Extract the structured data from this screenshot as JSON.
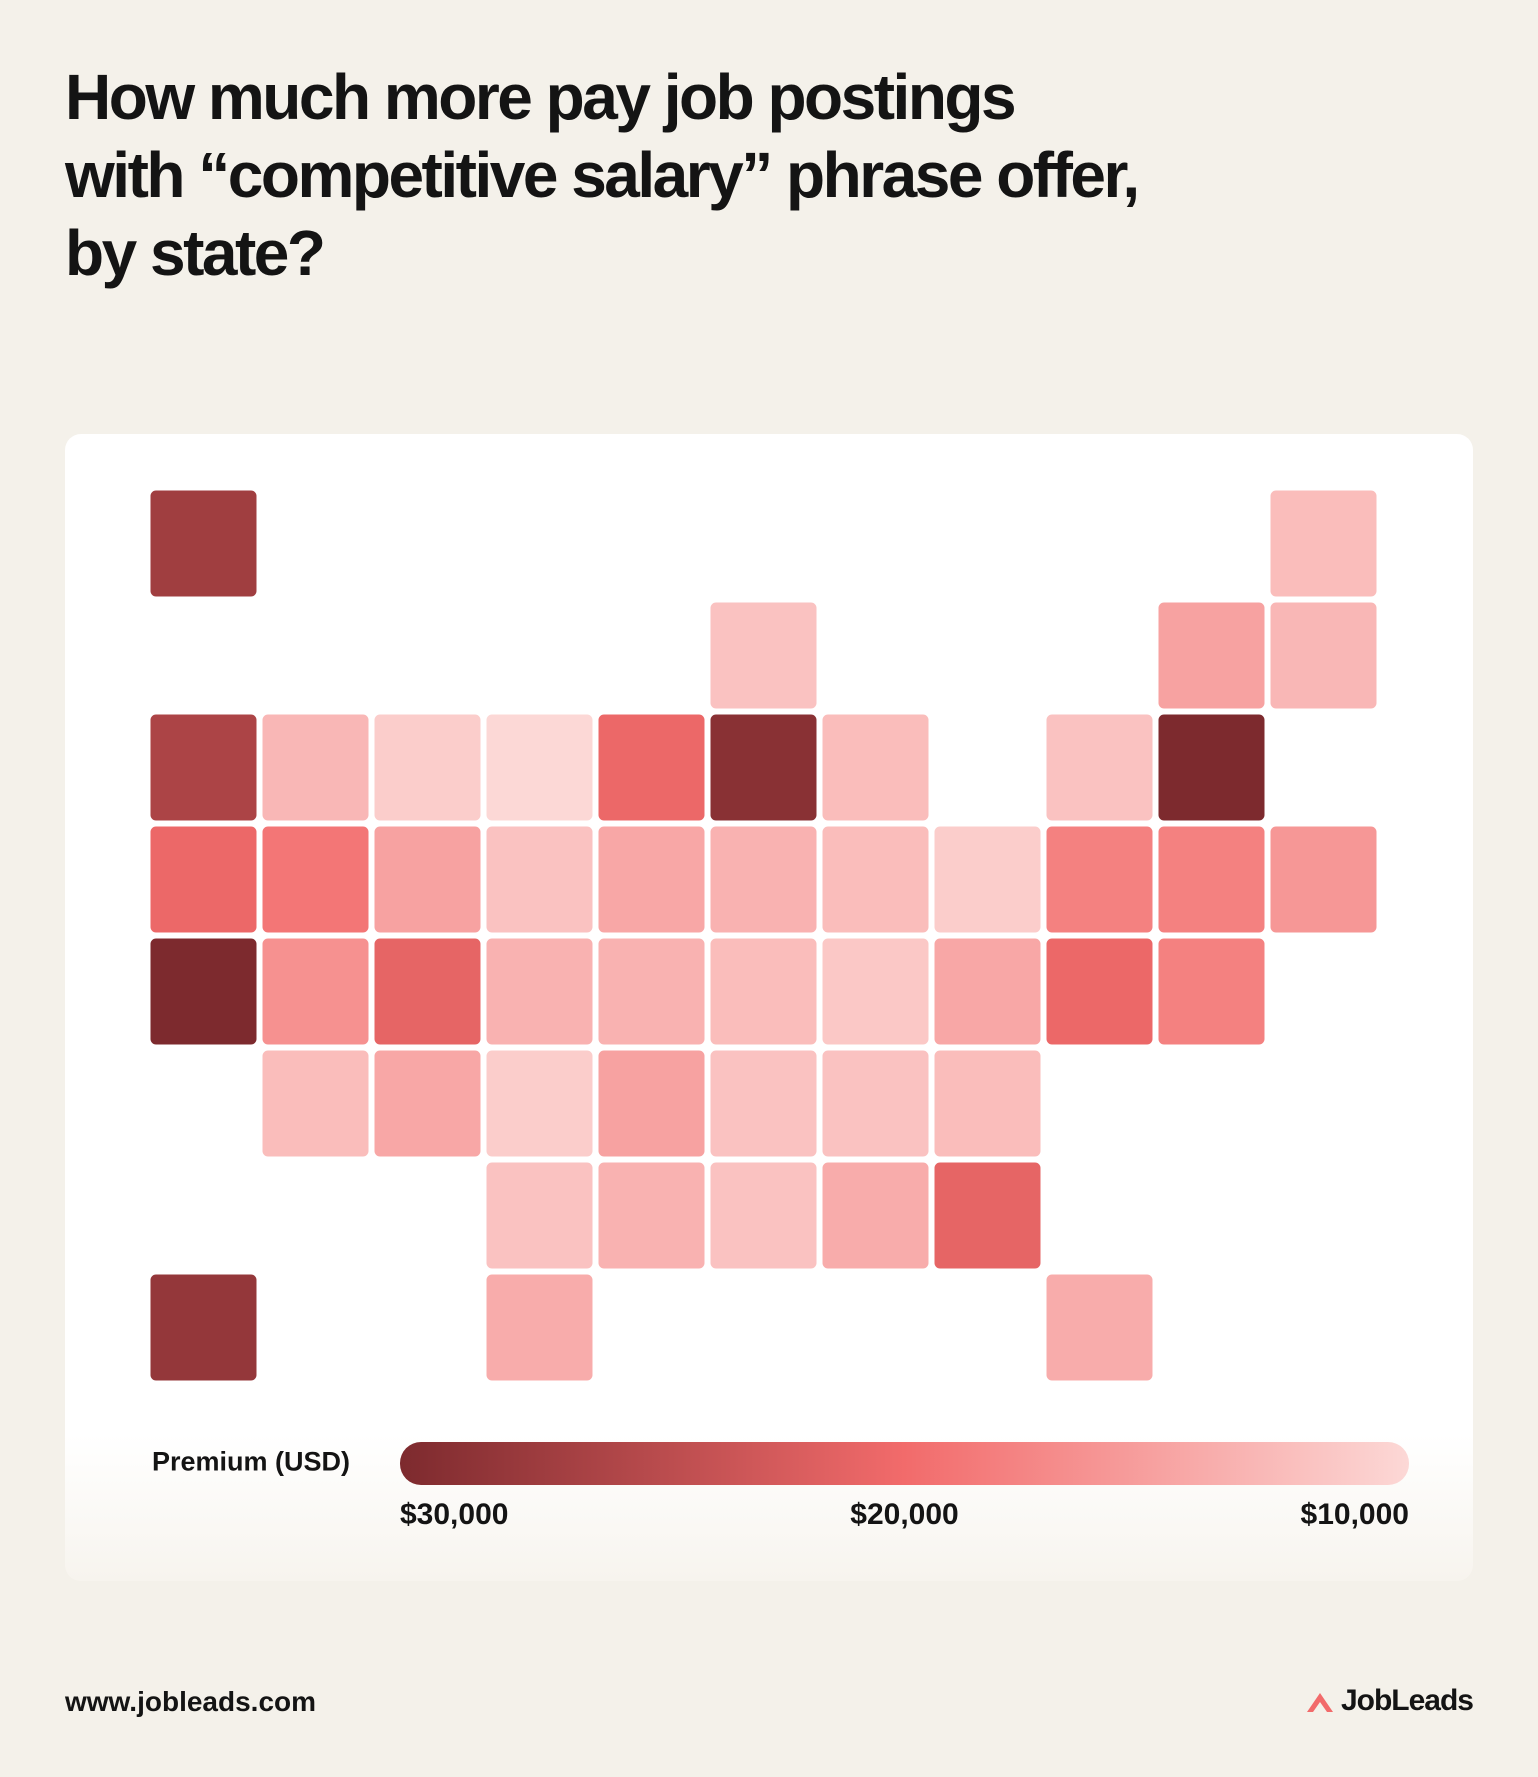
{
  "chart_data": {
    "type": "choropleth",
    "title": "How much more pay job postings\nwith “competitive salary” phrase offer,\nby state?",
    "values": [
      27000,
      12500,
      15000,
      13000,
      26000,
      13000,
      11000,
      10000,
      20500,
      12000,
      12500,
      12000,
      30000,
      20500,
      19000,
      15000,
      12000,
      14500,
      13500,
      12500,
      11000,
      18000,
      18000,
      16000,
      30000,
      16500,
      21000,
      13500,
      13500,
      12500,
      11500,
      14500,
      20500,
      18000,
      12500,
      14500,
      11000,
      15000,
      12000,
      12000,
      12500,
      12000,
      13500,
      12000,
      14000,
      21000,
      28000,
      14000,
      14000,
      29000
    ],
    "colorbar": {
      "label": "Premium (USD)",
      "lim": [
        30000,
        10000
      ],
      "ticks": [
        {
          "value": 30000,
          "label": "$30,000"
        },
        {
          "value": 20000,
          "label": "$20,000"
        },
        {
          "value": 10000,
          "label": "$10,000"
        }
      ],
      "colors": [
        "#7d2a2e",
        "#f26b6b",
        "#fcd8d6"
      ]
    }
  },
  "footer": {
    "url": "www.jobleads.com",
    "brand": "JobLeads"
  }
}
